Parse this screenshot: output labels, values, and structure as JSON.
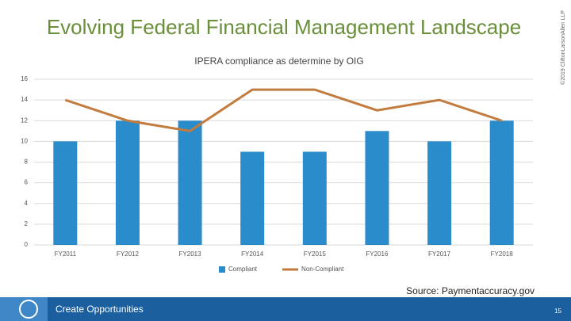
{
  "slide": {
    "title": "Evolving Federal Financial Management Landscape",
    "copyright": "©2019 CliftonLarsonAllen LLP",
    "source": "Source: Paymentaccuracy.gov",
    "footer": "Create Opportunities",
    "page": "15"
  },
  "chart_data": {
    "type": "bar",
    "title": "IPERA compliance as determine by OIG",
    "categories": [
      "FY2011",
      "FY2012",
      "FY2013",
      "FY2014",
      "FY2015",
      "FY2016",
      "FY2017",
      "FY2018"
    ],
    "series": [
      {
        "name": "Compliant",
        "color": "#2b8ccc",
        "type": "bar",
        "values": [
          10,
          12,
          12,
          9,
          9,
          11,
          10,
          12
        ]
      },
      {
        "name": "Non-Compliant",
        "color": "#c27b3c",
        "type": "line",
        "values": [
          14,
          12,
          11,
          15,
          15,
          13,
          14,
          12
        ]
      }
    ],
    "ylim": [
      0,
      16
    ],
    "yticks": [
      0,
      2,
      4,
      6,
      8,
      10,
      12,
      14,
      16
    ],
    "grid": true,
    "legend": "bottom"
  }
}
